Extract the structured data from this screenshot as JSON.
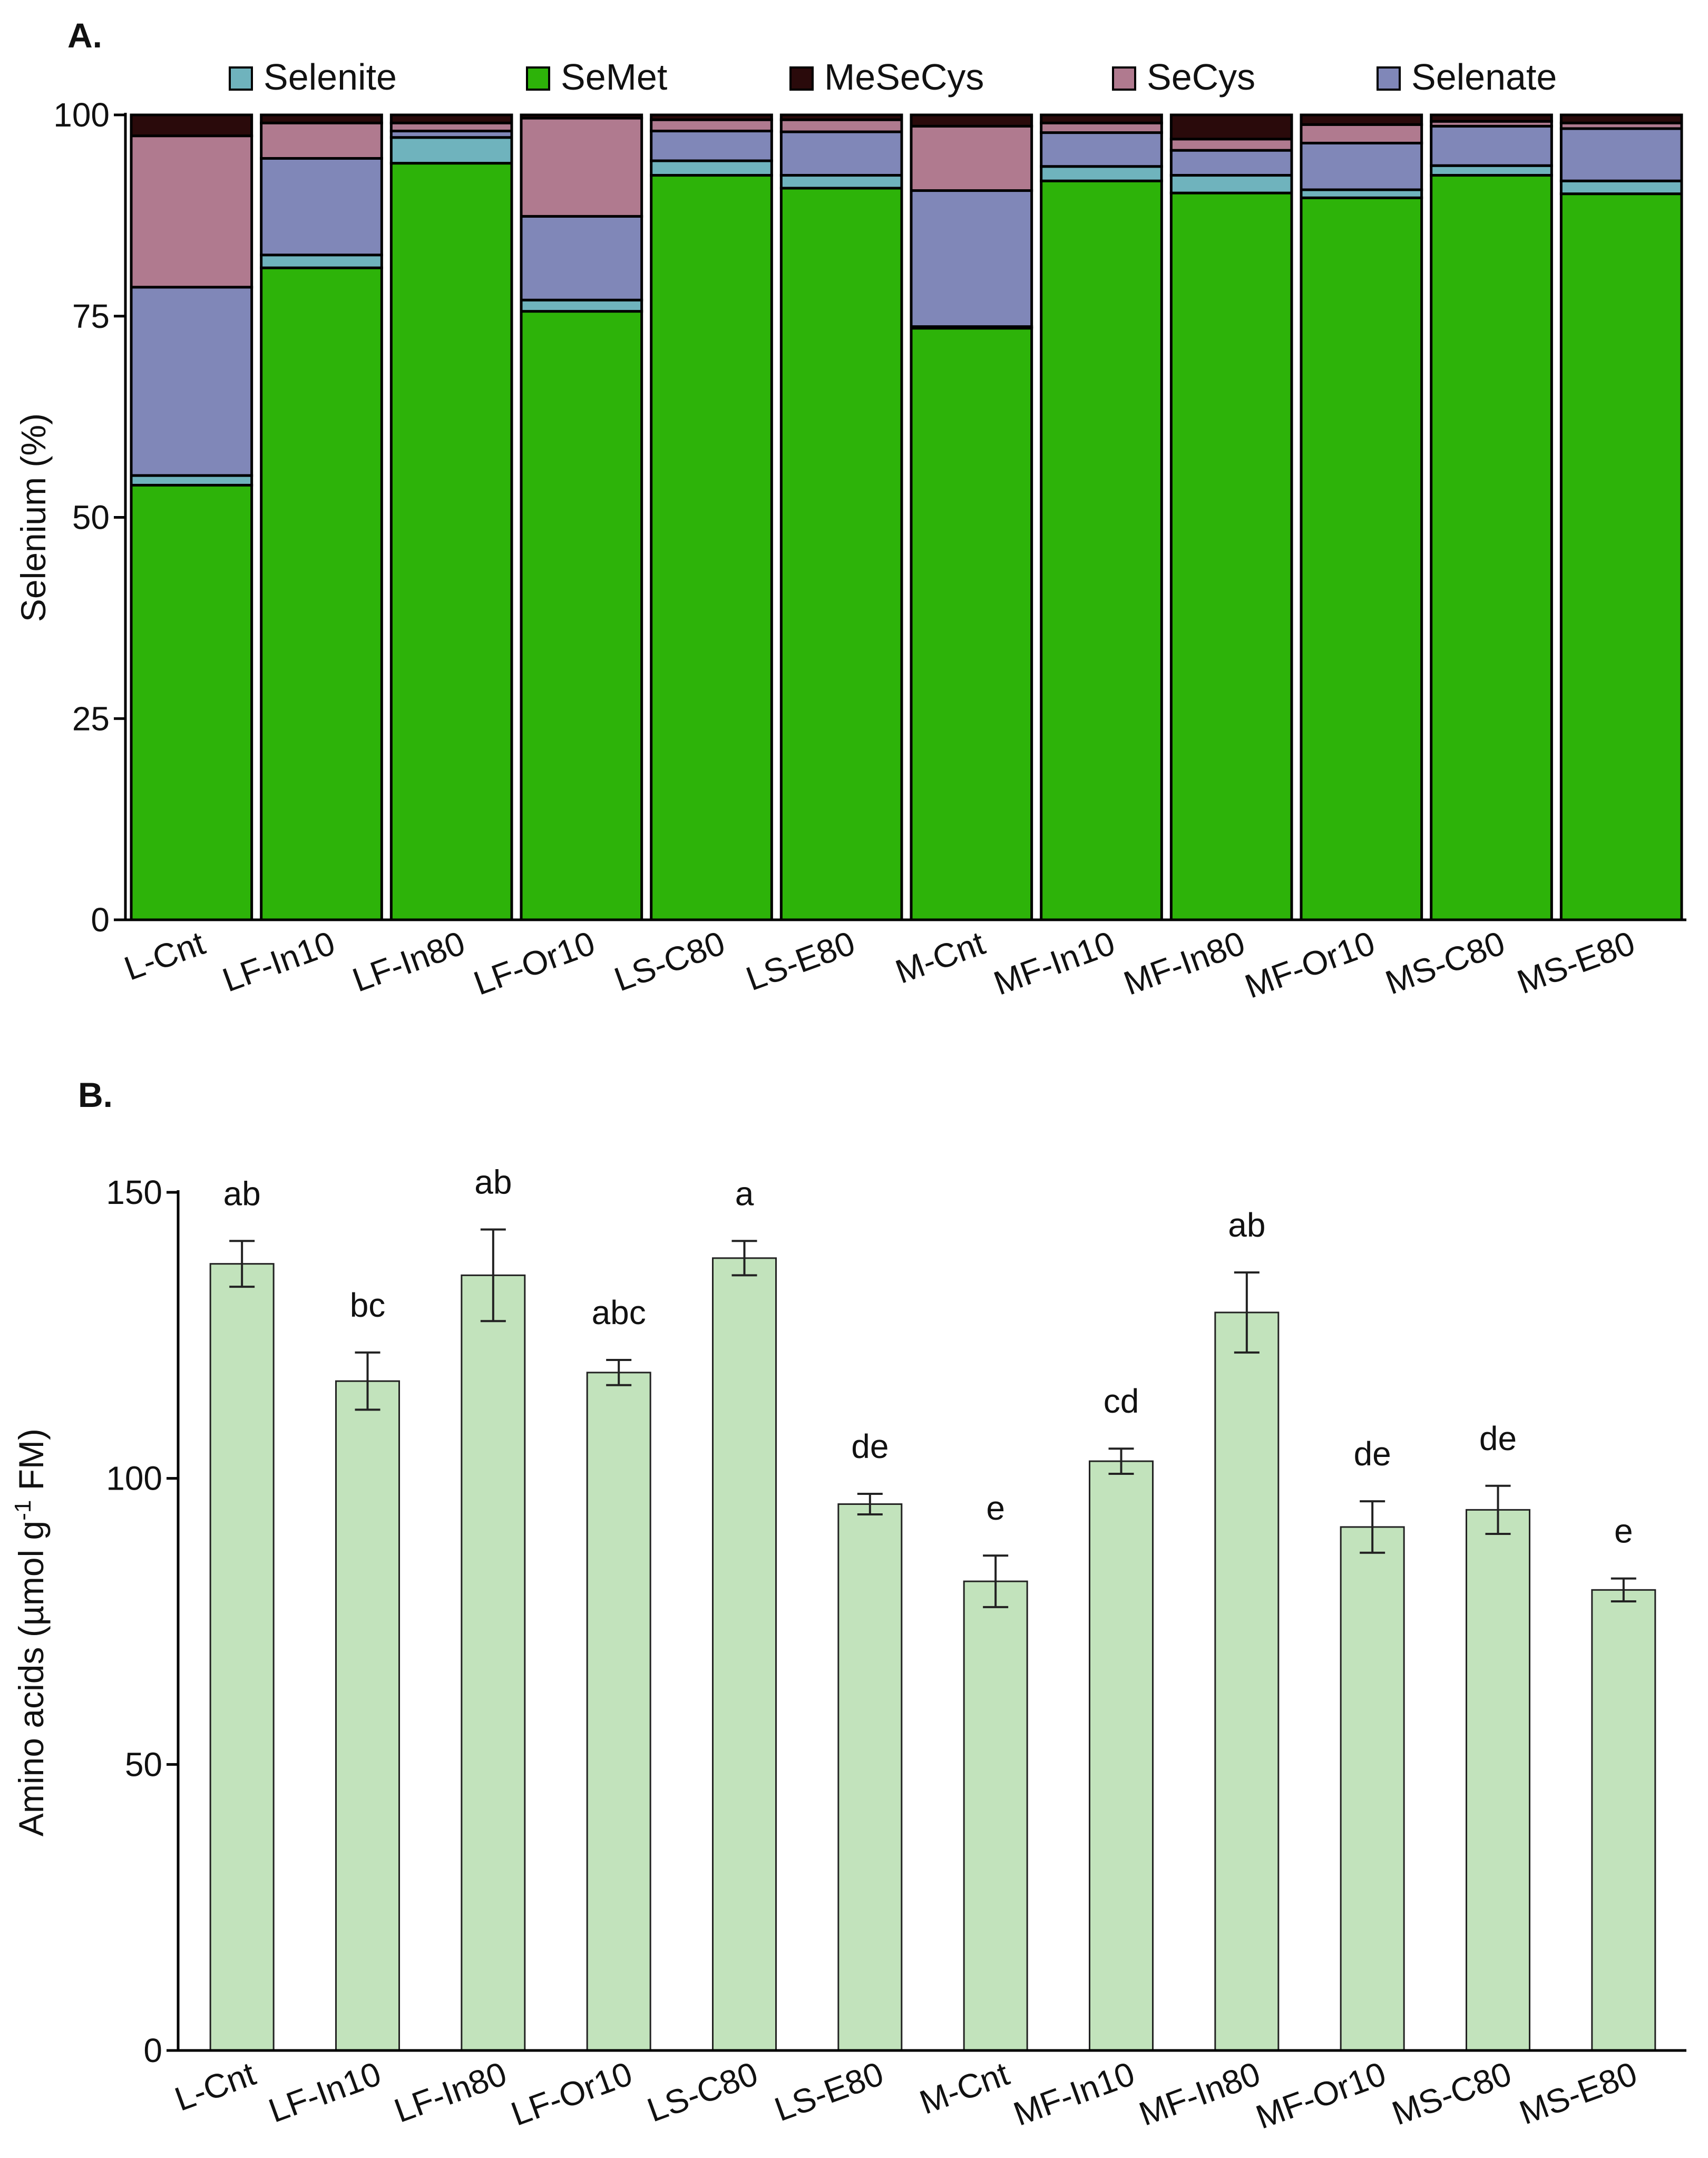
{
  "chart_data": [
    {
      "panel_label": "A.",
      "type": "bar",
      "stacked": true,
      "title": "",
      "xlabel": "",
      "ylabel": "Selenium (%)",
      "ylim": [
        0,
        100
      ],
      "yticks": [
        "0",
        "25",
        "50",
        "75",
        "100"
      ],
      "legend_position": "top",
      "categories": [
        "L-Cnt",
        "LF-In10",
        "LF-In80",
        "LF-Or10",
        "LS-C80",
        "LS-E80",
        "M-Cnt",
        "MF-In10",
        "MF-In80",
        "MF-Or10",
        "MS-C80",
        "MS-E80"
      ],
      "stack_order": [
        "SeMet",
        "Selenite",
        "Selenate",
        "SeCys",
        "MeSeCys"
      ],
      "series": [
        {
          "name": "Selenite",
          "color": "#6fb3bd",
          "values": [
            1.2,
            1.6,
            3.2,
            1.4,
            1.8,
            1.6,
            0.2,
            1.8,
            2.2,
            1.0,
            1.2,
            1.6
          ]
        },
        {
          "name": "SeMet",
          "color": "#2db309",
          "values": [
            54.0,
            81.0,
            94.0,
            75.6,
            92.5,
            90.9,
            73.5,
            91.8,
            90.3,
            89.7,
            92.5,
            90.2
          ]
        },
        {
          "name": "MeSeCys",
          "color": "#2a0a0b",
          "values": [
            2.6,
            1.0,
            1.0,
            0.4,
            0.6,
            0.6,
            1.4,
            1.0,
            3.0,
            1.2,
            0.8,
            1.0
          ]
        },
        {
          "name": "SeCys",
          "color": "#b07a8f",
          "values": [
            18.8,
            4.4,
            1.0,
            12.2,
            1.4,
            1.5,
            8.0,
            1.2,
            1.4,
            2.3,
            0.6,
            0.7
          ]
        },
        {
          "name": "Selenate",
          "color": "#8087b8",
          "values": [
            23.4,
            12.0,
            0.8,
            10.4,
            3.7,
            5.4,
            16.9,
            4.2,
            3.1,
            5.8,
            4.9,
            6.5
          ]
        }
      ]
    },
    {
      "panel_label": "B.",
      "type": "bar",
      "title": "",
      "xlabel": "",
      "ylabel_main": "Amino acids (µmol g",
      "ylabel_sup": "-1",
      "ylabel_end": " FM)",
      "ylim": [
        0,
        150
      ],
      "yticks": [
        "0",
        "50",
        "100",
        "150"
      ],
      "bar_color": "#c2e3bc",
      "categories": [
        "L-Cnt",
        "LF-In10",
        "LF-In80",
        "LF-Or10",
        "LS-C80",
        "LS-E80",
        "M-Cnt",
        "MF-In10",
        "MF-In80",
        "MF-Or10",
        "MS-C80",
        "MS-E80"
      ],
      "values": [
        137.5,
        117.0,
        135.5,
        118.5,
        138.5,
        95.5,
        82.0,
        103.0,
        129.0,
        91.5,
        94.5,
        80.5
      ],
      "errors": [
        4.0,
        5.0,
        8.0,
        2.2,
        3.0,
        1.8,
        4.5,
        2.2,
        7.0,
        4.5,
        4.2,
        2.0
      ],
      "significance_letters": [
        "ab",
        "bc",
        "ab",
        "abc",
        "a",
        "de",
        "e",
        "cd",
        "ab",
        "de",
        "de",
        "e"
      ]
    }
  ]
}
